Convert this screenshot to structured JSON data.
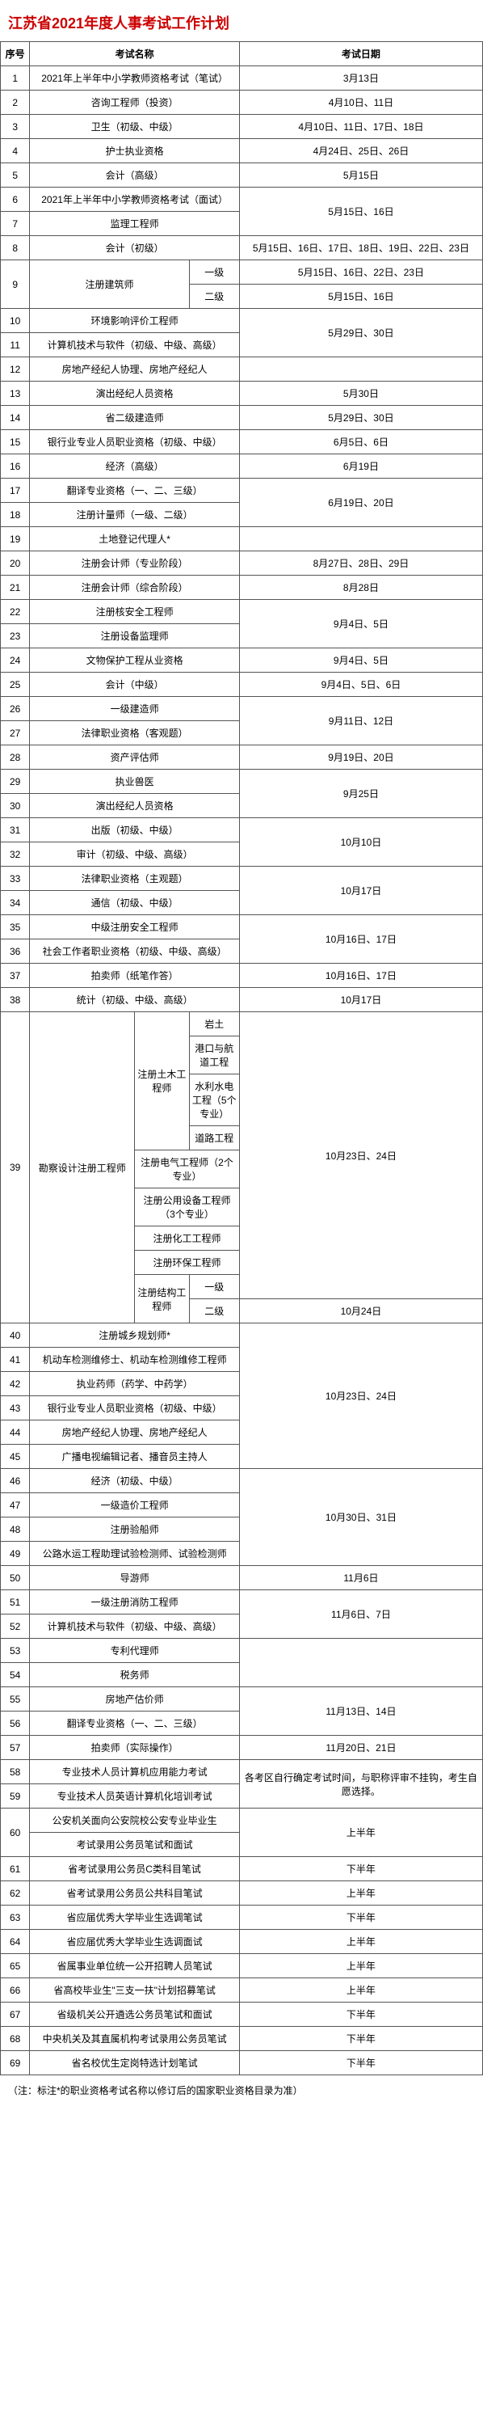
{
  "title": "江苏省2021年度人事考试工作计划",
  "headers": {
    "seq": "序号",
    "name": "考试名称",
    "date": "考试日期"
  },
  "note": "（注：标注*的职业资格考试名称以修订后的国家职业资格目录为准）",
  "col_widths": {
    "seq": 35,
    "name": 250,
    "date": 290
  },
  "rows": [
    {
      "seq": "1",
      "name": "2021年上半年中小学教师资格考试（笔试）",
      "date": "3月13日"
    },
    {
      "seq": "2",
      "name": "咨询工程师（投资）",
      "date": "4月10日、11日"
    },
    {
      "seq": "3",
      "name": "卫生（初级、中级）",
      "date": "4月10日、11日、17日、18日"
    },
    {
      "seq": "4",
      "name": "护士执业资格",
      "date": "4月24日、25日、26日"
    },
    {
      "seq": "5",
      "name": "会计（高级）",
      "date": "5月15日"
    },
    {
      "seq": "6",
      "name": "2021年上半年中小学教师资格考试（面试）",
      "date": "5月15日、16日",
      "rowspan_date": 2
    },
    {
      "seq": "7",
      "name": "监理工程师"
    },
    {
      "seq": "8",
      "name": "会计（初级）",
      "date": "5月15日、16日、17日、18日、19日、22日、23日"
    }
  ],
  "r9": {
    "seq": "9",
    "name": "注册建筑师",
    "sub1": "一级",
    "date1": "5月15日、16日、22日、23日",
    "sub2": "二级",
    "date2": "5月15日、16日"
  },
  "rows2": [
    {
      "seq": "10",
      "name": "环境影响评价工程师",
      "date": "5月29日、30日",
      "rowspan_date": 2
    },
    {
      "seq": "11",
      "name": "计算机技术与软件（初级、中级、高级）"
    },
    {
      "seq": "12",
      "name": "房地产经纪人协理、房地产经纪人",
      "date": "5月29日、30日",
      "rowspan_date": 2
    },
    {
      "seq": "13",
      "name": "演出经纪人员资格",
      "date": "5月30日"
    },
    {
      "seq": "14",
      "name": "省二级建造师",
      "date": "5月29日、30日"
    },
    {
      "seq": "15",
      "name": "银行业专业人员职业资格（初级、中级）",
      "date": "6月5日、6日"
    },
    {
      "seq": "16",
      "name": "经济（高级）",
      "date": "6月19日"
    },
    {
      "seq": "17",
      "name": "翻译专业资格（一、二、三级）",
      "date": "6月19日、20日",
      "rowspan_date": 2
    },
    {
      "seq": "18",
      "name": "注册计量师（一级、二级）"
    },
    {
      "seq": "19",
      "name": "土地登记代理人*",
      "date": ""
    },
    {
      "seq": "20",
      "name": "注册会计师（专业阶段）",
      "date": "8月27日、28日、29日"
    },
    {
      "seq": "21",
      "name": "注册会计师（综合阶段）",
      "date": "8月28日"
    },
    {
      "seq": "22",
      "name": "注册核安全工程师",
      "date": "9月4日、5日",
      "rowspan_date": 2
    },
    {
      "seq": "23",
      "name": "注册设备监理师"
    },
    {
      "seq": "24",
      "name": "文物保护工程从业资格",
      "date": "9月4日、5日"
    },
    {
      "seq": "25",
      "name": "会计（中级）",
      "date": "9月4日、5日、6日"
    },
    {
      "seq": "26",
      "name": "一级建造师",
      "date": "9月11日、12日",
      "rowspan_date": 2
    },
    {
      "seq": "27",
      "name": "法律职业资格（客观题）"
    },
    {
      "seq": "28",
      "name": "资产评估师",
      "date": "9月19日、20日"
    },
    {
      "seq": "29",
      "name": "执业兽医",
      "date": "9月25日",
      "rowspan_date": 2
    },
    {
      "seq": "30",
      "name": "演出经纪人员资格"
    },
    {
      "seq": "31",
      "name": "出版（初级、中级）",
      "date": "10月10日",
      "rowspan_date": 2
    },
    {
      "seq": "32",
      "name": "审计（初级、中级、高级）"
    },
    {
      "seq": "33",
      "name": "法律职业资格（主观题）",
      "date": "10月17日",
      "rowspan_date": 2
    },
    {
      "seq": "34",
      "name": "通信（初级、中级）"
    },
    {
      "seq": "35",
      "name": "中级注册安全工程师",
      "date": "10月16日、17日",
      "rowspan_date": 2
    },
    {
      "seq": "36",
      "name": "社会工作者职业资格（初级、中级、高级）"
    },
    {
      "seq": "37",
      "name": "拍卖师（纸笔作答）",
      "date": "10月16日、17日"
    },
    {
      "seq": "38",
      "name": "统计（初级、中级、高级）",
      "date": "10月17日"
    }
  ],
  "r39": {
    "seq": "39",
    "cat1": "勘察设计注册工程师",
    "cat2a": "注册土木工程师",
    "sub_a": [
      "岩土",
      "港口与航道工程",
      "水利水电工程（5个专业）",
      "道路工程"
    ],
    "sub_b": [
      "注册电气工程师（2个专业）",
      "注册公用设备工程师（3个专业）",
      "注册化工工程师",
      "注册环保工程师"
    ],
    "cat2c": "注册结构工程师",
    "sub_c1": "一级",
    "sub_c2": "二级",
    "date1": "10月23日、24日",
    "date2": "10月24日"
  },
  "rows3": [
    {
      "seq": "40",
      "name": "注册城乡规划师*",
      "date": "10月23日、24日",
      "rowspan_date": 6
    },
    {
      "seq": "41",
      "name": "机动车检测维修士、机动车检测维修工程师"
    },
    {
      "seq": "42",
      "name": "执业药师（药学、中药学）"
    },
    {
      "seq": "43",
      "name": "银行业专业人员职业资格（初级、中级）"
    },
    {
      "seq": "44",
      "name": "房地产经纪人协理、房地产经纪人"
    },
    {
      "seq": "45",
      "name": "广播电视编辑记者、播音员主持人"
    },
    {
      "seq": "46",
      "name": "经济（初级、中级）",
      "date": "10月30日、31日",
      "rowspan_date": 4
    },
    {
      "seq": "47",
      "name": "一级造价工程师"
    },
    {
      "seq": "48",
      "name": "注册验船师"
    },
    {
      "seq": "49",
      "name": "公路水运工程助理试验检测师、试验检测师"
    },
    {
      "seq": "50",
      "name": "导游师",
      "date": "11月6日"
    },
    {
      "seq": "51",
      "name": "一级注册消防工程师",
      "date": "11月6日、7日",
      "rowspan_date": 2
    },
    {
      "seq": "52",
      "name": "计算机技术与软件（初级、中级、高级）"
    },
    {
      "seq": "53",
      "name": "专利代理师",
      "date": "",
      "rowspan_date": 2
    },
    {
      "seq": "54",
      "name": "税务师"
    },
    {
      "seq": "55",
      "name": "房地产估价师",
      "date": "11月13日、14日",
      "rowspan_date": 2
    },
    {
      "seq": "56",
      "name": "翻译专业资格（一、二、三级）"
    },
    {
      "seq": "57",
      "name": "拍卖师（实际操作）",
      "date": "11月20日、21日"
    },
    {
      "seq": "58",
      "name": "专业技术人员计算机应用能力考试",
      "date": "各考区自行确定考试时间，与职称评审不挂钩，考生自愿选择。",
      "rowspan_date": 2
    },
    {
      "seq": "59",
      "name": "专业技术人员英语计算机化培训考试"
    }
  ],
  "r60": {
    "seq": "60",
    "name1": "公安机关面向公安院校公安专业毕业生",
    "name2": "考试录用公务员笔试和面试",
    "date": "上半年"
  },
  "rows4": [
    {
      "seq": "61",
      "name": "省考试录用公务员C类科目笔试",
      "date": "下半年"
    },
    {
      "seq": "62",
      "name": "省考试录用公务员公共科目笔试",
      "date": "上半年"
    },
    {
      "seq": "63",
      "name": "省应届优秀大学毕业生选调笔试",
      "date": "下半年"
    },
    {
      "seq": "64",
      "name": "省应届优秀大学毕业生选调面试",
      "date": "上半年"
    },
    {
      "seq": "65",
      "name": "省属事业单位统一公开招聘人员笔试",
      "date": "上半年"
    },
    {
      "seq": "66",
      "name": "省高校毕业生\"三支一扶\"计划招募笔试",
      "date": "上半年"
    },
    {
      "seq": "67",
      "name": "省级机关公开遴选公务员笔试和面试",
      "date": "下半年"
    },
    {
      "seq": "68",
      "name": "中央机关及其直属机构考试录用公务员笔试",
      "date": "下半年"
    },
    {
      "seq": "69",
      "name": "省名校优生定岗特选计划笔试",
      "date": "下半年"
    }
  ]
}
